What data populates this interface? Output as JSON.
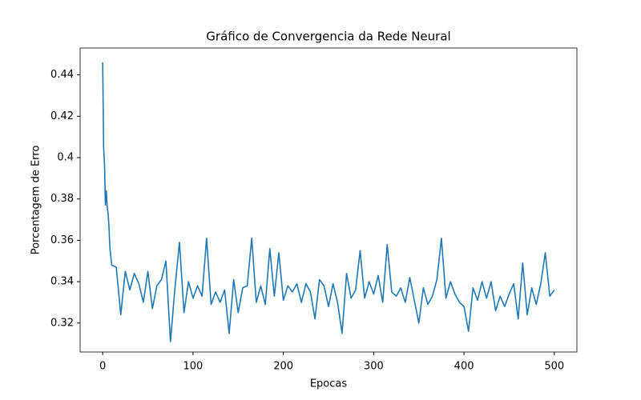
{
  "chart_data": {
    "type": "line",
    "title": "Gráfico de Convergencia da Rede Neural",
    "xlabel": "Epocas",
    "ylabel": "Porcentagem de Erro",
    "color": "#1f77b4",
    "x": [
      0,
      1,
      2,
      3,
      4,
      5,
      6,
      7,
      8,
      9,
      10,
      15,
      20,
      25,
      30,
      35,
      40,
      45,
      50,
      55,
      60,
      65,
      70,
      75,
      80,
      85,
      90,
      95,
      100,
      105,
      110,
      115,
      120,
      125,
      130,
      135,
      140,
      145,
      150,
      155,
      160,
      165,
      170,
      175,
      180,
      185,
      190,
      195,
      200,
      205,
      210,
      215,
      220,
      225,
      230,
      235,
      240,
      245,
      250,
      255,
      260,
      265,
      270,
      275,
      280,
      285,
      290,
      295,
      300,
      305,
      310,
      315,
      320,
      325,
      330,
      335,
      340,
      345,
      350,
      355,
      360,
      365,
      370,
      375,
      380,
      385,
      390,
      395,
      400,
      405,
      410,
      415,
      420,
      425,
      430,
      435,
      440,
      445,
      450,
      455,
      460,
      465,
      470,
      475,
      480,
      485,
      490,
      495,
      500
    ],
    "values": [
      0.446,
      0.405,
      0.397,
      0.377,
      0.384,
      0.376,
      0.373,
      0.366,
      0.356,
      0.352,
      0.348,
      0.347,
      0.324,
      0.345,
      0.336,
      0.344,
      0.339,
      0.33,
      0.345,
      0.327,
      0.338,
      0.341,
      0.35,
      0.311,
      0.337,
      0.359,
      0.325,
      0.34,
      0.332,
      0.338,
      0.333,
      0.361,
      0.329,
      0.335,
      0.33,
      0.336,
      0.315,
      0.341,
      0.325,
      0.337,
      0.338,
      0.361,
      0.33,
      0.338,
      0.329,
      0.356,
      0.333,
      0.354,
      0.331,
      0.338,
      0.335,
      0.339,
      0.33,
      0.339,
      0.335,
      0.322,
      0.341,
      0.338,
      0.328,
      0.339,
      0.33,
      0.315,
      0.344,
      0.332,
      0.336,
      0.355,
      0.332,
      0.34,
      0.334,
      0.343,
      0.33,
      0.358,
      0.335,
      0.333,
      0.337,
      0.33,
      0.342,
      0.331,
      0.32,
      0.337,
      0.329,
      0.333,
      0.341,
      0.361,
      0.332,
      0.34,
      0.334,
      0.33,
      0.328,
      0.316,
      0.337,
      0.331,
      0.34,
      0.332,
      0.34,
      0.326,
      0.333,
      0.328,
      0.334,
      0.339,
      0.322,
      0.349,
      0.324,
      0.337,
      0.329,
      0.339,
      0.354,
      0.333,
      0.336
    ],
    "xlim": [
      -25,
      525
    ],
    "xticks": [
      0,
      100,
      200,
      300,
      400,
      500
    ],
    "ylim": [
      0.306,
      0.453
    ],
    "yticks": [
      0.32,
      0.34,
      0.36,
      0.38,
      0.4,
      0.42,
      0.44
    ],
    "grid": false
  }
}
